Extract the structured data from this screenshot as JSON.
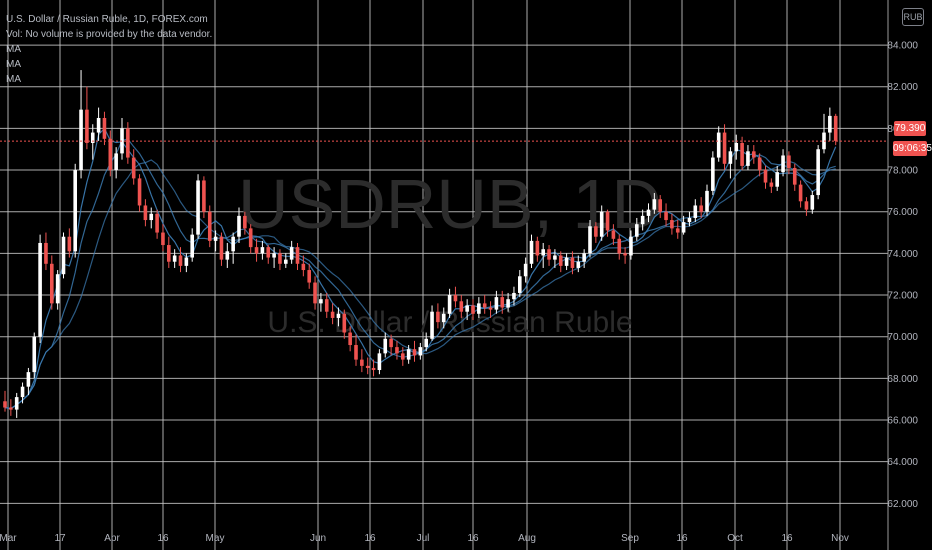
{
  "header": {
    "title_line": "U.S. Dollar / Russian Ruble, 1D, FOREX.com",
    "volume_note": "Vol: No volume is provided by the data vendor.",
    "ma_labels": [
      "MA",
      "MA",
      "MA"
    ]
  },
  "currency_badge": "RUB",
  "price_tag": "79.390",
  "countdown_tag": "09:06:35",
  "watermark": {
    "symbol": "USDRUB, 1D",
    "description": "U.S. Dollar / Russian Ruble"
  },
  "colors": {
    "up": "#ffffff",
    "down": "#ef5350",
    "ma": "#3d7fb8",
    "grid": "#c9c9c9",
    "price_line": "#ef5350"
  },
  "chart_data": {
    "type": "candlestick",
    "yaxis": {
      "ticks": [
        "62.000",
        "64.000",
        "66.000",
        "68.000",
        "70.000",
        "72.000",
        "74.000",
        "76.000",
        "78.000",
        "80.000",
        "82.000",
        "84.000"
      ],
      "ylim": [
        61.2,
        85.3
      ]
    },
    "xaxis": {
      "ticks": [
        "Mar",
        "17",
        "Apr",
        "16",
        "May",
        "Jun",
        "16",
        "Jul",
        "16",
        "Aug",
        "Sep",
        "16",
        "Oct",
        "16",
        "Nov"
      ]
    },
    "last_price": 79.39,
    "candles": [
      [
        66.9,
        67.4,
        66.4,
        66.6
      ],
      [
        66.6,
        67.0,
        66.2,
        66.5
      ],
      [
        66.5,
        67.3,
        66.1,
        67.1
      ],
      [
        67.1,
        67.8,
        66.8,
        67.6
      ],
      [
        67.6,
        68.5,
        67.2,
        68.3
      ],
      [
        68.3,
        70.2,
        68.0,
        70.0
      ],
      [
        70.0,
        74.9,
        69.7,
        74.5
      ],
      [
        74.5,
        75.0,
        73.2,
        73.5
      ],
      [
        73.5,
        73.9,
        71.3,
        71.6
      ],
      [
        71.6,
        73.2,
        71.3,
        73.0
      ],
      [
        73.0,
        75.0,
        72.8,
        74.8
      ],
      [
        74.8,
        75.2,
        73.8,
        74.1
      ],
      [
        74.1,
        78.3,
        73.8,
        78.0
      ],
      [
        78.0,
        82.8,
        77.6,
        80.9
      ],
      [
        80.9,
        82.0,
        79.0,
        79.3
      ],
      [
        79.3,
        80.2,
        78.5,
        79.8
      ],
      [
        79.8,
        81.0,
        79.4,
        80.5
      ],
      [
        80.5,
        80.8,
        79.2,
        79.5
      ],
      [
        79.5,
        79.9,
        77.7,
        78.0
      ],
      [
        78.0,
        79.1,
        77.6,
        78.8
      ],
      [
        78.8,
        80.5,
        78.5,
        80.0
      ],
      [
        80.0,
        80.3,
        78.3,
        78.6
      ],
      [
        78.6,
        79.0,
        77.3,
        77.6
      ],
      [
        77.6,
        77.8,
        76.0,
        76.3
      ],
      [
        76.3,
        76.6,
        75.3,
        75.6
      ],
      [
        75.6,
        76.2,
        75.2,
        75.9
      ],
      [
        75.9,
        76.1,
        74.7,
        75.0
      ],
      [
        75.0,
        75.4,
        74.1,
        74.4
      ],
      [
        74.4,
        74.8,
        73.3,
        73.6
      ],
      [
        73.6,
        74.2,
        73.3,
        73.9
      ],
      [
        73.9,
        74.3,
        73.1,
        73.4
      ],
      [
        73.4,
        74.0,
        73.1,
        73.8
      ],
      [
        73.8,
        75.2,
        73.6,
        74.9
      ],
      [
        74.9,
        77.8,
        74.7,
        77.5
      ],
      [
        77.5,
        77.7,
        75.7,
        76.0
      ],
      [
        76.0,
        76.3,
        74.3,
        74.6
      ],
      [
        74.6,
        75.1,
        74.1,
        74.8
      ],
      [
        74.8,
        75.0,
        73.4,
        73.7
      ],
      [
        73.7,
        74.5,
        73.3,
        74.1
      ],
      [
        74.1,
        75.0,
        73.5,
        74.8
      ],
      [
        74.8,
        76.2,
        74.5,
        75.8
      ],
      [
        75.8,
        76.0,
        74.9,
        75.2
      ],
      [
        75.2,
        75.4,
        74.0,
        74.3
      ],
      [
        74.3,
        74.7,
        73.6,
        74.0
      ],
      [
        74.0,
        74.6,
        73.7,
        74.3
      ],
      [
        74.3,
        74.4,
        73.5,
        73.8
      ],
      [
        73.8,
        74.3,
        73.3,
        74.0
      ],
      [
        74.0,
        74.2,
        73.2,
        73.5
      ],
      [
        73.5,
        74.0,
        73.3,
        73.7
      ],
      [
        73.7,
        74.6,
        73.5,
        74.3
      ],
      [
        74.3,
        74.5,
        73.2,
        73.5
      ],
      [
        73.5,
        73.9,
        72.9,
        73.2
      ],
      [
        73.2,
        73.5,
        72.3,
        72.6
      ],
      [
        72.6,
        72.9,
        71.3,
        71.6
      ],
      [
        71.6,
        72.1,
        71.2,
        71.8
      ],
      [
        71.8,
        72.1,
        70.9,
        71.2
      ],
      [
        71.2,
        71.6,
        70.6,
        70.9
      ],
      [
        70.9,
        71.4,
        70.5,
        71.1
      ],
      [
        71.1,
        71.3,
        69.9,
        70.2
      ],
      [
        70.2,
        70.5,
        69.3,
        69.6
      ],
      [
        69.6,
        70.1,
        68.6,
        68.9
      ],
      [
        68.9,
        69.4,
        68.3,
        68.6
      ],
      [
        68.6,
        69.0,
        68.2,
        68.5
      ],
      [
        68.5,
        68.9,
        68.1,
        68.4
      ],
      [
        68.4,
        69.4,
        68.2,
        69.2
      ],
      [
        69.2,
        70.2,
        69.0,
        69.9
      ],
      [
        69.9,
        70.1,
        69.1,
        69.5
      ],
      [
        69.5,
        69.8,
        68.9,
        69.2
      ],
      [
        69.2,
        69.5,
        68.6,
        68.9
      ],
      [
        68.9,
        69.6,
        68.7,
        69.4
      ],
      [
        69.4,
        69.8,
        68.8,
        69.1
      ],
      [
        69.1,
        69.7,
        68.9,
        69.5
      ],
      [
        69.5,
        70.2,
        69.3,
        69.9
      ],
      [
        69.9,
        71.5,
        69.8,
        71.2
      ],
      [
        71.2,
        71.6,
        70.4,
        70.7
      ],
      [
        70.7,
        71.4,
        70.4,
        71.1
      ],
      [
        71.1,
        72.3,
        70.9,
        72.0
      ],
      [
        72.0,
        72.4,
        71.4,
        71.7
      ],
      [
        71.7,
        72.0,
        70.9,
        71.2
      ],
      [
        71.2,
        71.8,
        70.8,
        71.5
      ],
      [
        71.5,
        71.8,
        70.8,
        71.1
      ],
      [
        71.1,
        71.9,
        70.9,
        71.6
      ],
      [
        71.6,
        72.0,
        71.1,
        71.4
      ],
      [
        71.4,
        71.7,
        70.9,
        71.3
      ],
      [
        71.3,
        72.2,
        71.1,
        71.9
      ],
      [
        71.9,
        72.2,
        71.1,
        71.4
      ],
      [
        71.4,
        72.1,
        71.2,
        71.8
      ],
      [
        71.8,
        72.4,
        71.5,
        72.1
      ],
      [
        72.1,
        73.2,
        71.9,
        72.9
      ],
      [
        72.9,
        73.8,
        72.6,
        73.5
      ],
      [
        73.5,
        74.9,
        73.3,
        74.6
      ],
      [
        74.6,
        74.8,
        73.6,
        73.9
      ],
      [
        73.9,
        74.5,
        73.3,
        74.2
      ],
      [
        74.2,
        74.4,
        73.4,
        73.7
      ],
      [
        73.7,
        74.2,
        73.3,
        73.9
      ],
      [
        73.9,
        74.1,
        73.1,
        73.4
      ],
      [
        73.4,
        74.0,
        73.2,
        73.8
      ],
      [
        73.8,
        74.1,
        73.0,
        73.3
      ],
      [
        73.3,
        73.9,
        73.1,
        73.6
      ],
      [
        73.6,
        74.2,
        73.3,
        74.0
      ],
      [
        74.0,
        75.6,
        73.8,
        75.3
      ],
      [
        75.3,
        75.5,
        74.5,
        74.8
      ],
      [
        74.8,
        76.3,
        74.6,
        76.0
      ],
      [
        76.0,
        76.1,
        74.8,
        75.1
      ],
      [
        75.1,
        75.4,
        74.4,
        74.7
      ],
      [
        74.7,
        74.9,
        73.7,
        74.0
      ],
      [
        74.0,
        74.3,
        73.5,
        73.9
      ],
      [
        73.9,
        75.1,
        73.7,
        74.8
      ],
      [
        74.8,
        75.7,
        74.6,
        75.4
      ],
      [
        75.4,
        76.1,
        75.1,
        75.8
      ],
      [
        75.8,
        76.4,
        75.5,
        76.1
      ],
      [
        76.1,
        76.9,
        75.9,
        76.6
      ],
      [
        76.6,
        76.8,
        75.7,
        76.0
      ],
      [
        76.0,
        76.4,
        75.3,
        75.6
      ],
      [
        75.6,
        75.9,
        74.9,
        75.2
      ],
      [
        75.2,
        75.6,
        74.7,
        75.0
      ],
      [
        75.0,
        75.8,
        74.9,
        75.5
      ],
      [
        75.5,
        76.0,
        75.3,
        75.7
      ],
      [
        75.7,
        76.6,
        75.5,
        76.3
      ],
      [
        76.3,
        76.7,
        75.7,
        76.0
      ],
      [
        76.0,
        77.3,
        75.8,
        77.0
      ],
      [
        77.0,
        78.9,
        76.8,
        78.6
      ],
      [
        78.6,
        80.1,
        78.4,
        79.8
      ],
      [
        79.8,
        80.2,
        78.0,
        78.3
      ],
      [
        78.3,
        79.1,
        77.6,
        78.9
      ],
      [
        78.9,
        79.7,
        78.5,
        79.3
      ],
      [
        79.3,
        79.6,
        78.0,
        78.2
      ],
      [
        78.2,
        79.2,
        78.0,
        78.9
      ],
      [
        78.9,
        79.2,
        78.3,
        78.6
      ],
      [
        78.6,
        78.8,
        77.7,
        78.0
      ],
      [
        78.0,
        78.2,
        77.1,
        77.4
      ],
      [
        77.4,
        77.6,
        76.9,
        77.2
      ],
      [
        77.2,
        78.2,
        77.0,
        77.9
      ],
      [
        77.9,
        79.0,
        77.7,
        78.7
      ],
      [
        78.7,
        78.9,
        77.8,
        78.1
      ],
      [
        78.1,
        78.3,
        77.0,
        77.3
      ],
      [
        77.3,
        77.5,
        76.2,
        76.5
      ],
      [
        76.5,
        76.7,
        75.8,
        76.1
      ],
      [
        76.1,
        77.0,
        75.9,
        76.8
      ],
      [
        76.8,
        79.2,
        76.6,
        79.0
      ],
      [
        79.0,
        80.7,
        78.8,
        79.8
      ],
      [
        79.8,
        81.0,
        79.4,
        80.6
      ],
      [
        80.6,
        80.7,
        79.2,
        79.4
      ]
    ]
  }
}
